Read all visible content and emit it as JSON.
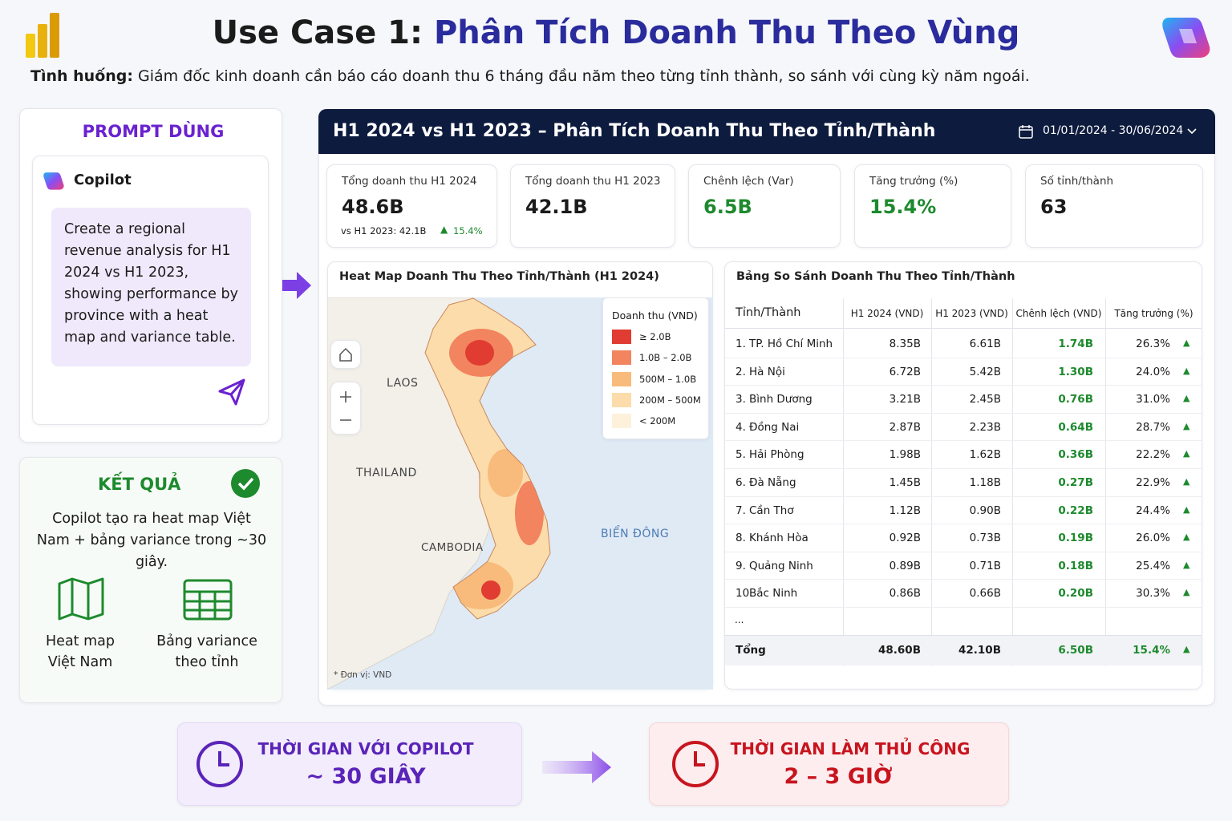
{
  "header": {
    "title_prefix": "Use Case 1:",
    "title_main": "Phân Tích Doanh Thu Theo Vùng",
    "situation_label": "Tình huống:",
    "situation_text": "Giám đốc kinh doanh cần báo cáo doanh thu 6 tháng đầu năm theo từng tỉnh thành, so sánh với cùng kỳ năm ngoái."
  },
  "prompt": {
    "title": "PROMPT DÙNG",
    "app": "Copilot",
    "text": "Create a regional revenue analysis for H1 2024 vs H1 2023, showing performance by province with a heat map and variance table."
  },
  "result": {
    "title": "KẾT QUẢ",
    "text": "Copilot tạo ra heat map Việt Nam + bảng variance trong ~30 giây.",
    "items": [
      {
        "line1": "Heat map",
        "line2": "Việt Nam"
      },
      {
        "line1": "Bảng variance",
        "line2": "theo tỉnh"
      }
    ]
  },
  "dashboard": {
    "title": "H1 2024 vs H1 2023 – Phân Tích Doanh Thu Theo Tỉnh/Thành",
    "date_range": "01/01/2024 - 30/06/2024",
    "kpis": [
      {
        "label": "Tổng doanh thu H1 2024",
        "value": "48.6B",
        "compare": "vs H1 2023: 42.1B",
        "growth": "15.4%"
      },
      {
        "label": "Tổng doanh thu H1 2023",
        "value": "42.1B"
      },
      {
        "label": "Chênh lệch (Var)",
        "value": "6.5B"
      },
      {
        "label": "Tăng trưởng (%)",
        "value": "15.4%"
      },
      {
        "label": "Số tỉnh/thành",
        "value": "63"
      }
    ]
  },
  "map": {
    "title": "Heat Map Doanh Thu Theo Tỉnh/Thành (H1 2024)",
    "legend_title": "Doanh thu (VND)",
    "legend": [
      {
        "label": "≥ 2.0B",
        "color": "#e03c31"
      },
      {
        "label": "1.0B – 2.0B",
        "color": "#f2845f"
      },
      {
        "label": "500M – 1.0B",
        "color": "#f8bb7c"
      },
      {
        "label": "200M – 500M",
        "color": "#fcdcaa"
      },
      {
        "label": "< 200M",
        "color": "#fdf1dc"
      }
    ],
    "labels": [
      "LAOS",
      "THAILAND",
      "CAMBODIA",
      "BIỂN ĐÔNG"
    ],
    "note": "* Đơn vị: VND"
  },
  "table": {
    "title": "Bảng So Sánh Doanh Thu Theo Tỉnh/Thành",
    "columns": [
      "Tỉnh/Thành",
      "H1 2024 (VND)",
      "H1 2023 (VND)",
      "Chênh lệch (VND)",
      "Tăng trưởng (%)"
    ],
    "rows": [
      [
        "1.",
        "TP. Hồ Chí Minh",
        "8.35B",
        "6.61B",
        "1.74B",
        "26.3%"
      ],
      [
        "2.",
        "Hà Nội",
        "6.72B",
        "5.42B",
        "1.30B",
        "24.0%"
      ],
      [
        "3.",
        "Bình Dương",
        "3.21B",
        "2.45B",
        "0.76B",
        "31.0%"
      ],
      [
        "4.",
        "Đồng Nai",
        "2.87B",
        "2.23B",
        "0.64B",
        "28.7%"
      ],
      [
        "5.",
        "Hải Phòng",
        "1.98B",
        "1.62B",
        "0.36B",
        "22.2%"
      ],
      [
        "6.",
        "Đà Nẵng",
        "1.45B",
        "1.18B",
        "0.27B",
        "22.9%"
      ],
      [
        "7.",
        "Cần Thơ",
        "1.12B",
        "0.90B",
        "0.22B",
        "24.4%"
      ],
      [
        "8.",
        "Khánh Hòa",
        "0.92B",
        "0.73B",
        "0.19B",
        "26.0%"
      ],
      [
        "9.",
        "Quảng Ninh",
        "0.89B",
        "0.71B",
        "0.18B",
        "25.4%"
      ],
      [
        "10.",
        "Bắc Ninh",
        "0.86B",
        "0.66B",
        "0.20B",
        "30.3%"
      ]
    ],
    "ellipsis": "...",
    "total": [
      "Tổng",
      "48.60B",
      "42.10B",
      "6.50B",
      "15.4%"
    ]
  },
  "footer": {
    "copilot_label": "THỜI GIAN VỚI COPILOT",
    "copilot_value": "~ 30 GIÂY",
    "manual_label": "THỜI GIAN LÀM THỦ CÔNG",
    "manual_value": "2 – 3 GIỜ"
  }
}
